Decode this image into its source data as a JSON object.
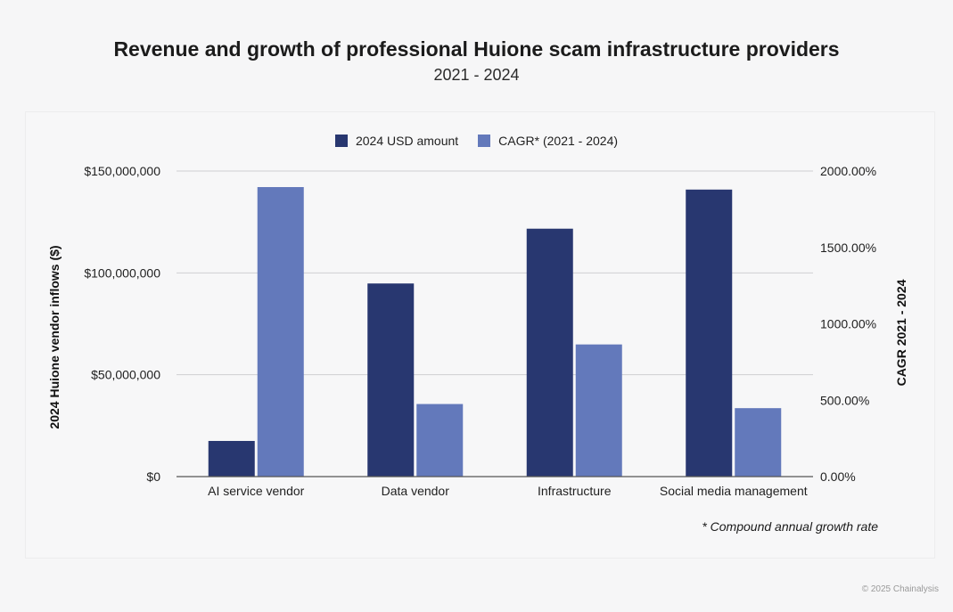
{
  "header": {
    "title": "Revenue and growth of professional Huione scam infrastructure providers",
    "subtitle": "2021 - 2024"
  },
  "footnote": "* Compound annual growth rate",
  "credit": "© 2025 Chainalysis",
  "chart_data": {
    "type": "bar",
    "categories": [
      "AI service vendor",
      "Data vendor",
      "Infrastructure",
      "Social media management"
    ],
    "series": [
      {
        "name": "2024 USD amount",
        "axis": "left",
        "color": "#283770",
        "values": [
          17500000,
          94800000,
          121700000,
          140900000
        ]
      },
      {
        "name": "CAGR* (2021 - 2024)",
        "axis": "right",
        "color": "#6379bb",
        "values": [
          1895,
          475,
          865,
          448
        ]
      }
    ],
    "ylabel_left": "2024 Huione vendor inflows ($)",
    "ylabel_right": "CAGR 2021 - 2024",
    "ylim_left": [
      0,
      150000000
    ],
    "ylim_right": [
      0,
      2000
    ],
    "yticks_left": [
      "$0",
      "$50,000,000",
      "$100,000,000",
      "$150,000,000"
    ],
    "yticks_right": [
      "0.00%",
      "500.00%",
      "1000.00%",
      "1500.00%",
      "2000.00%"
    ],
    "grid": true,
    "legend_position": "top-center"
  }
}
